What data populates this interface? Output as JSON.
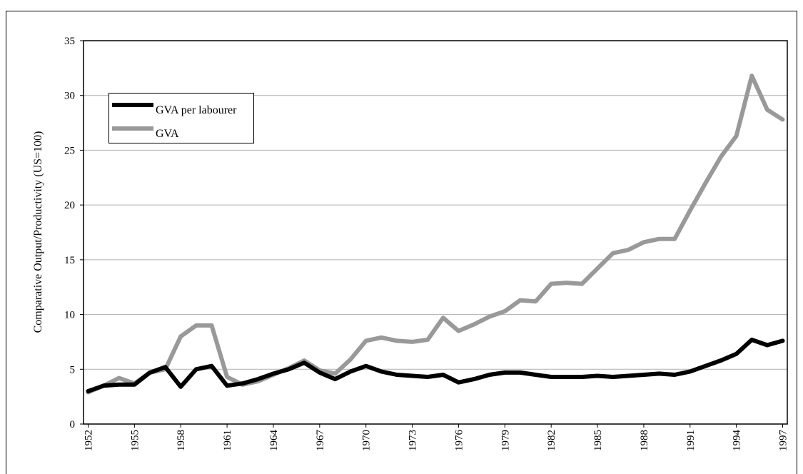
{
  "chart_data": {
    "type": "line",
    "ylabel": "Comparative Output/Productivity (US=100)",
    "x": [
      1952,
      1953,
      1954,
      1955,
      1956,
      1957,
      1958,
      1959,
      1960,
      1961,
      1962,
      1963,
      1964,
      1965,
      1966,
      1967,
      1968,
      1969,
      1970,
      1971,
      1972,
      1973,
      1974,
      1975,
      1976,
      1977,
      1978,
      1979,
      1980,
      1981,
      1982,
      1983,
      1984,
      1985,
      1986,
      1987,
      1988,
      1989,
      1990,
      1991,
      1992,
      1993,
      1994,
      1995,
      1996,
      1997
    ],
    "series": [
      {
        "name": "GVA per labourer",
        "color": "#000000",
        "values": [
          3.0,
          3.5,
          3.6,
          3.6,
          4.7,
          5.2,
          3.4,
          5.0,
          5.3,
          3.5,
          3.7,
          4.1,
          4.6,
          5.0,
          5.6,
          4.7,
          4.1,
          4.8,
          5.3,
          4.8,
          4.5,
          4.4,
          4.3,
          4.5,
          3.8,
          4.1,
          4.5,
          4.7,
          4.7,
          4.5,
          4.3,
          4.3,
          4.3,
          4.4,
          4.3,
          4.4,
          4.5,
          4.6,
          4.5,
          4.8,
          5.3,
          5.8,
          6.4,
          7.7,
          7.2,
          7.6
        ]
      },
      {
        "name": "GVA",
        "color": "#999999",
        "values": [
          2.9,
          3.5,
          4.2,
          3.7,
          4.7,
          5.0,
          8.0,
          9.0,
          9.0,
          4.3,
          3.6,
          3.9,
          4.5,
          5.1,
          5.8,
          4.9,
          4.6,
          5.9,
          7.6,
          7.9,
          7.6,
          7.5,
          7.7,
          9.7,
          8.5,
          9.1,
          9.8,
          10.3,
          11.3,
          11.2,
          12.8,
          12.9,
          12.8,
          14.2,
          15.6,
          15.9,
          16.6,
          16.9,
          16.9,
          19.5,
          22.0,
          24.4,
          26.3,
          31.8,
          28.7,
          27.8
        ]
      }
    ],
    "xlim": [
      1951.7,
      1997.3
    ],
    "xticks": [
      1952,
      1955,
      1958,
      1961,
      1964,
      1967,
      1970,
      1973,
      1976,
      1979,
      1982,
      1985,
      1988,
      1991,
      1994,
      1997
    ],
    "ylim": [
      0,
      35
    ],
    "yticks": [
      0,
      5,
      10,
      15,
      20,
      25,
      30,
      35
    ],
    "grid": true,
    "legend": "upper left"
  }
}
